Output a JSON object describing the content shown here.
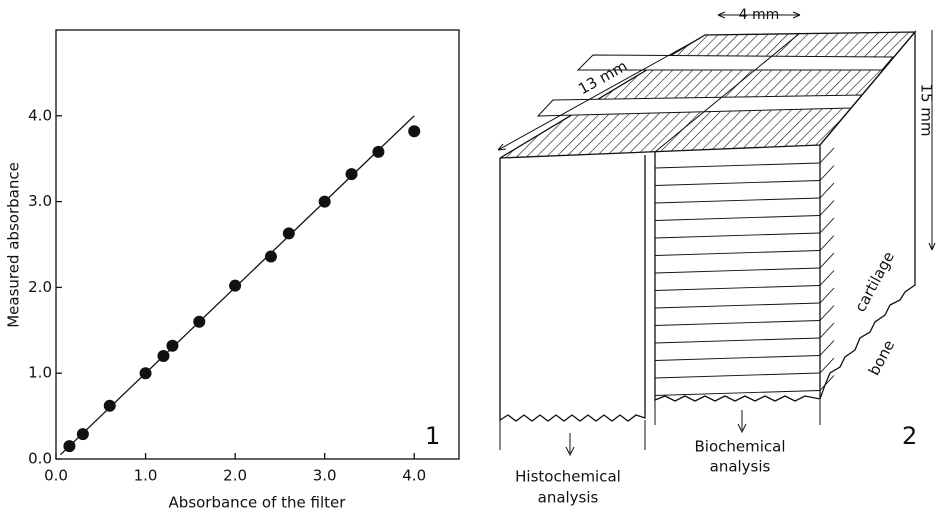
{
  "chart_data": {
    "type": "scatter",
    "panel": "1",
    "x_label": "Absorbance of the filter",
    "y_label": "Measured absorbance",
    "x": [
      0.15,
      0.3,
      0.6,
      1.0,
      1.2,
      1.3,
      1.6,
      2.0,
      2.4,
      2.6,
      3.0,
      3.3,
      3.6,
      4.0
    ],
    "y": [
      0.15,
      0.29,
      0.62,
      1.0,
      1.2,
      1.32,
      1.6,
      2.02,
      2.36,
      2.63,
      3.0,
      3.32,
      3.58,
      3.82
    ],
    "fit": {
      "x": [
        0.05,
        4.0
      ],
      "y": [
        0.05,
        4.0
      ]
    },
    "color": "#111111",
    "xlim": [
      0,
      4.5
    ],
    "ylim": [
      0,
      5
    ],
    "xticks": [
      {
        "value": 0,
        "label": "0.0"
      },
      {
        "value": 1,
        "label": "1.0"
      },
      {
        "value": 2,
        "label": "2.0"
      },
      {
        "value": 3,
        "label": "3.0"
      },
      {
        "value": 4,
        "label": "4.0"
      }
    ],
    "yticks": [
      {
        "value": 0,
        "label": "0.0"
      },
      {
        "value": 1,
        "label": "1.0"
      },
      {
        "value": 2,
        "label": "2.0"
      },
      {
        "value": 3,
        "label": "3.0"
      },
      {
        "value": 4,
        "label": "4.0"
      }
    ]
  },
  "diagram": {
    "panel": "2",
    "width": "4 mm",
    "length": "13 mm",
    "height": "15 mm",
    "cartilage": "cartilage",
    "bone": "bone",
    "left_label": [
      "Histochemical",
      "analysis"
    ],
    "right_label": [
      "Biochemical",
      "analysis"
    ]
  }
}
